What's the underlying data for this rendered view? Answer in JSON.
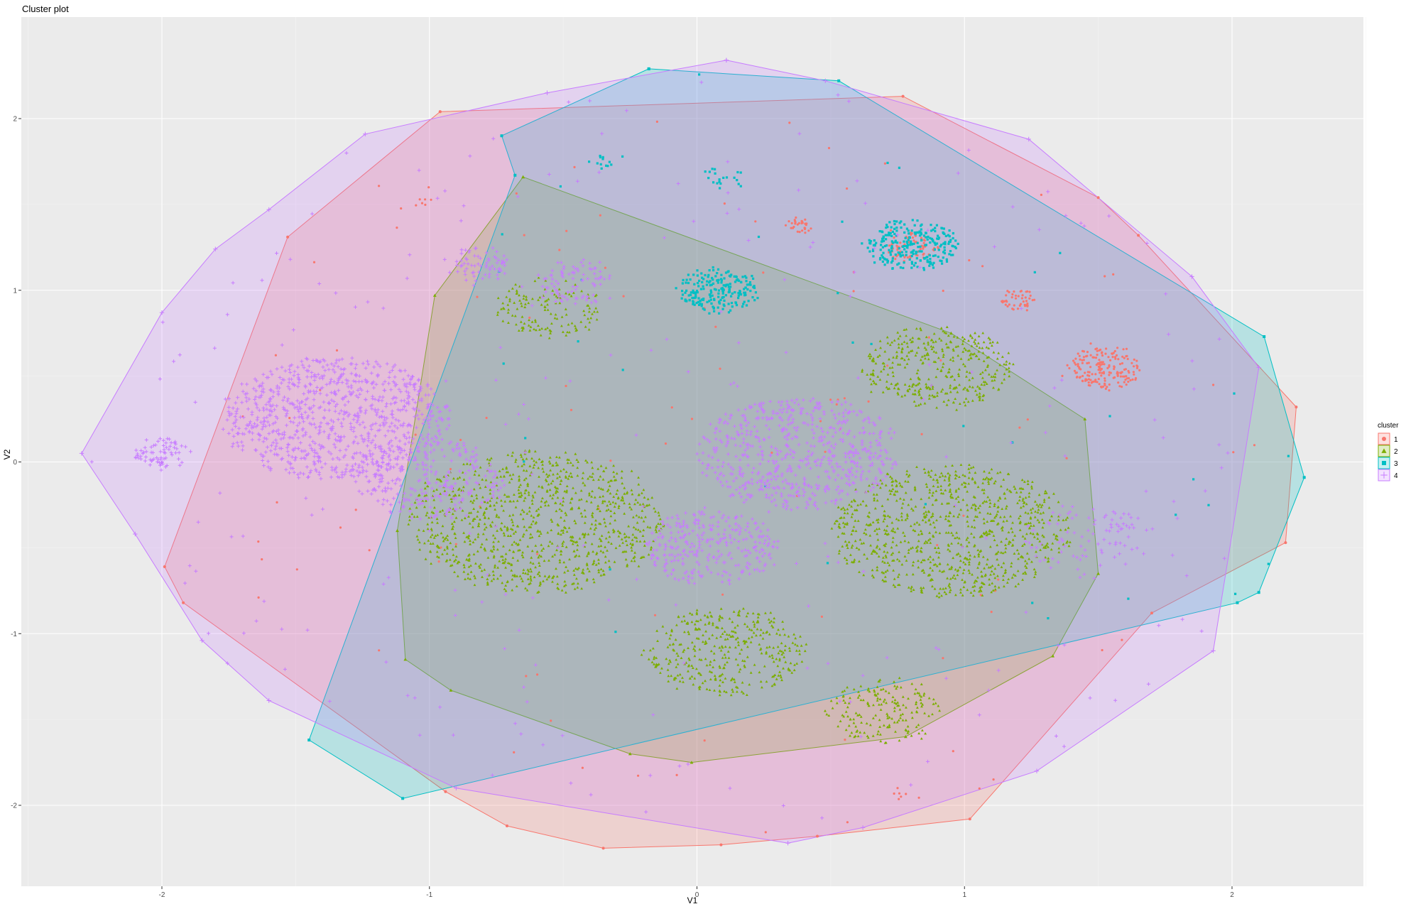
{
  "chart_data": {
    "type": "scatter",
    "title": "Cluster plot",
    "xlabel": "V1",
    "ylabel": "V2",
    "xlim": [
      -2.5,
      2.5
    ],
    "ylim": [
      -2.5,
      2.45
    ],
    "x_ticks": [
      -2,
      -1,
      0,
      1,
      2
    ],
    "y_ticks": [
      -2,
      -1,
      0,
      1,
      2
    ],
    "grid": true,
    "panel_background": "#ebebeb",
    "legend": {
      "title": "cluster",
      "position": "right"
    },
    "series": [
      {
        "name": "1",
        "color": "#F8766D",
        "shape": "circle",
        "hull": [
          [
            -0.96,
            2.04
          ],
          [
            0.77,
            2.13
          ],
          [
            1.5,
            1.54
          ],
          [
            1.65,
            1.32
          ],
          [
            2.24,
            0.32
          ],
          [
            2.2,
            -0.47
          ],
          [
            1.7,
            -0.88
          ],
          [
            1.02,
            -2.08
          ],
          [
            0.45,
            -2.18
          ],
          [
            0.09,
            -2.23
          ],
          [
            -0.35,
            -2.25
          ],
          [
            -0.71,
            -2.12
          ],
          [
            -0.94,
            -1.92
          ],
          [
            -1.92,
            -0.82
          ],
          [
            -1.99,
            -0.61
          ],
          [
            -1.53,
            1.31
          ],
          [
            -0.96,
            2.04
          ]
        ],
        "groups": [
          {
            "center": [
              1.53,
              0.55
            ],
            "r": 0.14,
            "n": 180
          },
          {
            "center": [
              0.8,
              1.25
            ],
            "r": 0.09,
            "n": 70
          },
          {
            "center": [
              1.2,
              0.94
            ],
            "r": 0.07,
            "n": 45
          },
          {
            "center": [
              0.38,
              1.38
            ],
            "r": 0.05,
            "n": 30
          },
          {
            "center": [
              -1.02,
              1.52
            ],
            "r": 0.03,
            "n": 6
          },
          {
            "center": [
              0.75,
              -1.93
            ],
            "r": 0.03,
            "n": 6
          },
          {
            "center": [
              0.53,
              0.35
            ],
            "r": 0.02,
            "n": 4
          }
        ],
        "scatter_n": 110
      },
      {
        "name": "2",
        "color": "#7CAE00",
        "shape": "triangle",
        "hull": [
          [
            -0.65,
            1.66
          ],
          [
            0.95,
            0.75
          ],
          [
            1.45,
            0.25
          ],
          [
            1.5,
            -0.65
          ],
          [
            1.33,
            -1.13
          ],
          [
            0.78,
            -1.6
          ],
          [
            -0.02,
            -1.75
          ],
          [
            -0.25,
            -1.7
          ],
          [
            -0.92,
            -1.33
          ],
          [
            -1.09,
            -1.15
          ],
          [
            -1.12,
            -0.4
          ],
          [
            -0.98,
            0.97
          ],
          [
            -0.65,
            1.66
          ]
        ],
        "groups": [
          {
            "center": [
              -0.6,
              -0.35
            ],
            "r": 0.48,
            "n": 1000
          },
          {
            "center": [
              0.95,
              -0.4
            ],
            "r": 0.45,
            "n": 900
          },
          {
            "center": [
              0.9,
              0.55
            ],
            "r": 0.28,
            "n": 380
          },
          {
            "center": [
              0.1,
              -1.1
            ],
            "r": 0.3,
            "n": 380
          },
          {
            "center": [
              0.7,
              -1.45
            ],
            "r": 0.22,
            "n": 180
          },
          {
            "center": [
              -0.55,
              0.9
            ],
            "r": 0.2,
            "n": 140
          }
        ],
        "scatter_n": 0
      },
      {
        "name": "3",
        "color": "#00BFC4",
        "shape": "square",
        "hull": [
          [
            -0.18,
            2.29
          ],
          [
            0.53,
            2.22
          ],
          [
            2.12,
            0.73
          ],
          [
            2.27,
            -0.09
          ],
          [
            2.1,
            -0.76
          ],
          [
            2.02,
            -0.82
          ],
          [
            -1.1,
            -1.96
          ],
          [
            -1.45,
            -1.62
          ],
          [
            -0.68,
            1.67
          ],
          [
            -0.73,
            1.9
          ],
          [
            -0.18,
            2.29
          ]
        ],
        "groups": [
          {
            "center": [
              0.8,
              1.26
            ],
            "r": 0.17,
            "n": 260
          },
          {
            "center": [
              0.08,
              1.0
            ],
            "r": 0.15,
            "n": 210
          },
          {
            "center": [
              -0.35,
              1.75
            ],
            "r": 0.05,
            "n": 12
          },
          {
            "center": [
              0.1,
              1.65
            ],
            "r": 0.08,
            "n": 20
          }
        ],
        "scatter_n": 40
      },
      {
        "name": "4",
        "color": "#C77CFF",
        "shape": "cross",
        "hull": [
          [
            0.11,
            2.34
          ],
          [
            0.48,
            2.22
          ],
          [
            1.24,
            1.88
          ],
          [
            1.85,
            1.08
          ],
          [
            2.1,
            0.55
          ],
          [
            1.93,
            -1.1
          ],
          [
            1.27,
            -1.8
          ],
          [
            0.62,
            -2.13
          ],
          [
            0.34,
            -2.22
          ],
          [
            -0.9,
            -1.9
          ],
          [
            -1.6,
            -1.39
          ],
          [
            -1.85,
            -1.04
          ],
          [
            -2.1,
            -0.42
          ],
          [
            -2.3,
            0.05
          ],
          [
            -2.0,
            0.87
          ],
          [
            -1.8,
            1.24
          ],
          [
            -1.6,
            1.47
          ],
          [
            -1.24,
            1.91
          ],
          [
            -0.56,
            2.15
          ],
          [
            0.11,
            2.34
          ]
        ],
        "groups": [
          {
            "center": [
              -1.35,
              0.25
            ],
            "r": 0.42,
            "n": 900
          },
          {
            "center": [
              0.38,
              0.05
            ],
            "r": 0.38,
            "n": 650
          },
          {
            "center": [
              0.05,
              -0.5
            ],
            "r": 0.25,
            "n": 300
          },
          {
            "center": [
              -1.0,
              -0.1
            ],
            "r": 0.28,
            "n": 260
          },
          {
            "center": [
              -2.0,
              0.05
            ],
            "r": 0.1,
            "n": 70
          },
          {
            "center": [
              -0.82,
              1.15
            ],
            "r": 0.12,
            "n": 70
          },
          {
            "center": [
              -0.45,
              1.05
            ],
            "r": 0.15,
            "n": 90
          },
          {
            "center": [
              1.45,
              -0.45
            ],
            "r": 0.25,
            "n": 90
          }
        ],
        "scatter_n": 260
      }
    ]
  }
}
